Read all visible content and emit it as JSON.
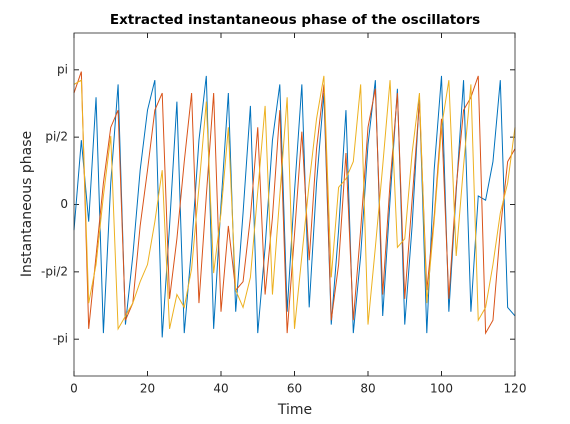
{
  "chart_data": {
    "type": "line",
    "title": "Extracted instantaneous phase of the oscillators",
    "x_label": "Time",
    "y_label": "Instantaneous phase",
    "x": [
      0,
      2,
      4,
      6,
      8,
      10,
      12,
      14,
      16,
      18,
      20,
      22,
      24,
      26,
      28,
      30,
      32,
      34,
      36,
      38,
      40,
      42,
      44,
      46,
      48,
      50,
      52,
      54,
      56,
      58,
      60,
      62,
      64,
      66,
      68,
      70,
      72,
      74,
      76,
      78,
      80,
      82,
      84,
      86,
      88,
      90,
      92,
      94,
      96,
      98,
      100,
      102,
      104,
      106,
      108,
      110,
      112,
      114,
      116,
      118,
      120
    ],
    "series": [
      {
        "color": "#0072BD",
        "values": [
          -0.6,
          1.5,
          -0.4,
          2.5,
          -3,
          0.5,
          2.8,
          -2.8,
          -1.2,
          0.8,
          2.2,
          2.9,
          -3.1,
          -0.5,
          2.4,
          -3,
          -1,
          1.5,
          3,
          -2.9,
          0,
          2.6,
          -2.5,
          -0.2,
          2.3,
          -3,
          -1,
          1.5,
          2.8,
          -2.5,
          0.3,
          2.8,
          -2.4,
          0.5,
          2.6,
          -2.8,
          -0.6,
          2.2,
          -3,
          -1.2,
          1.4,
          2.9,
          -2.6,
          0.1,
          2.7,
          -2.8,
          -0.5,
          2.5,
          -3,
          0.8,
          3,
          -2.5,
          0.3,
          2.9,
          -2.5,
          0.2,
          0.1,
          1.0,
          2.9,
          -2.4,
          -2.6
        ]
      },
      {
        "color": "#D95319",
        "values": [
          2.6,
          3.1,
          -2.9,
          -1.2,
          0.5,
          1.8,
          2.2,
          -2.7,
          -2.3,
          -0.5,
          0.8,
          2.2,
          2.6,
          -2.2,
          -0.8,
          1.0,
          2.6,
          -2.3,
          0.2,
          2.6,
          -2.5,
          -0.5,
          -2.0,
          -1.8,
          -0.3,
          1.8,
          -2.1,
          -0.3,
          2.2,
          -3.0,
          -0.7,
          1.7,
          -1.3,
          1.3,
          2.8,
          -2.7,
          -1.4,
          1.2,
          -2.7,
          -0.6,
          1.8,
          2.7,
          -2.1,
          0.5,
          2.6,
          -2.2,
          0.1,
          2.4,
          -2.0,
          -0.3,
          2.0,
          -2.2,
          0.4,
          2.2,
          2.5,
          3.0,
          -3.0,
          -2.7,
          -0.6,
          1.0,
          1.3
        ]
      },
      {
        "color": "#EDB120",
        "values": [
          2.8,
          2.9,
          -2.3,
          -1.4,
          0.2,
          1.6,
          -2.9,
          -2.6,
          -2.3,
          -1.8,
          -1.4,
          -0.4,
          0.8,
          -2.9,
          -2.1,
          -2.4,
          -1.5,
          0.4,
          2.4,
          -1.6,
          -0.2,
          1.8,
          -2.0,
          -2.4,
          -1.7,
          0.3,
          2.3,
          -2.1,
          0.2,
          2.5,
          -2.9,
          -1.2,
          0.5,
          2.0,
          3.0,
          -1.7,
          0.4,
          0.6,
          1.0,
          2.8,
          -2.8,
          -1.0,
          0.9,
          2.9,
          -1.0,
          -0.8,
          1.2,
          2.6,
          -2.3,
          -0.4,
          1.8,
          2.9,
          -1.2,
          0.9,
          2.8,
          -2.7,
          -2.4,
          -1.4,
          -0.2,
          0.5,
          1.8
        ]
      }
    ],
    "xlim": [
      0,
      120
    ],
    "xticks": [
      0,
      20,
      40,
      60,
      80,
      100,
      120
    ],
    "ylim": [
      -4,
      4
    ],
    "yticks": [
      {
        "value": -3.1416,
        "label": "-pi"
      },
      {
        "value": -1.5708,
        "label": "-pi/2"
      },
      0,
      {
        "value": 1.5708,
        "label": "pi/2"
      },
      {
        "value": 3.1416,
        "label": "pi"
      }
    ]
  }
}
